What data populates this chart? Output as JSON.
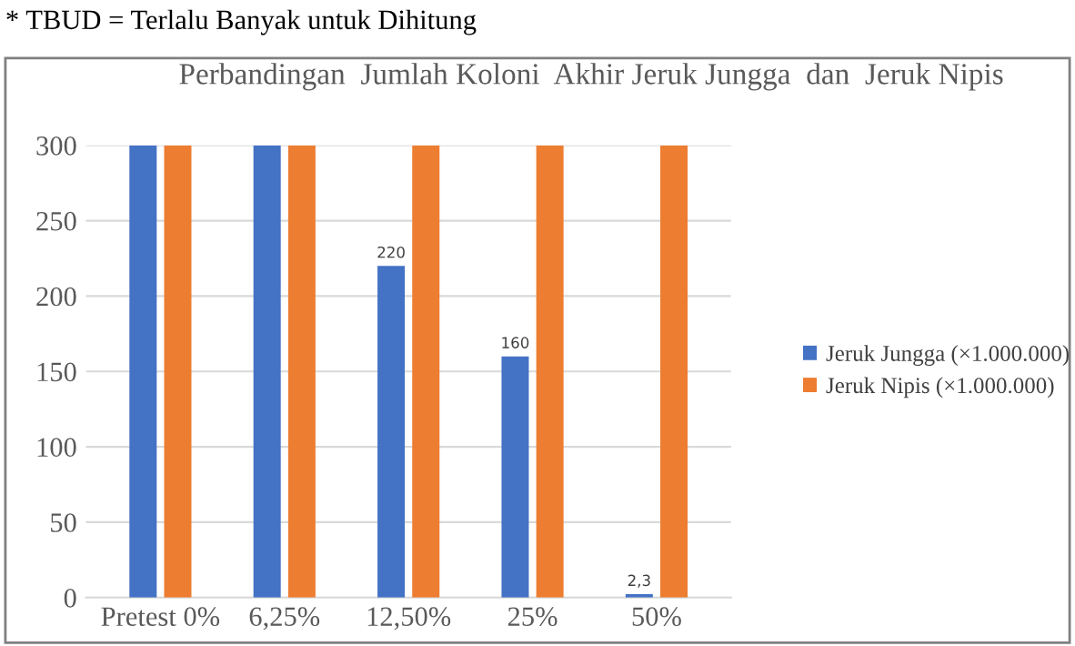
{
  "chart_data": {
    "type": "bar",
    "title": "Perbandingan  Jumlah Koloni  Akhir Jeruk Jungga  dan  Jeruk Nipis",
    "categories": [
      "Pretest 0%",
      "6,25%",
      "12,50%",
      "25%",
      "50%"
    ],
    "series": [
      {
        "name": "Jeruk Jungga (×1.000.000)",
        "color": "#4472c4",
        "values": [
          300,
          300,
          220,
          160,
          2.3
        ],
        "value_labels": [
          null,
          null,
          "220",
          "160",
          "2,3"
        ]
      },
      {
        "name": "Jeruk Nipis (×1.000.000)",
        "color": "#ed7d31",
        "values": [
          300,
          300,
          300,
          300,
          300
        ]
      }
    ],
    "ylim": [
      0,
      300
    ],
    "yticks": [
      0,
      50,
      100,
      150,
      200,
      250,
      300
    ],
    "grid": "y",
    "legend": "right",
    "annotations": [
      "* TBUD = Terlalu Banyak untuk Dihitung"
    ]
  }
}
